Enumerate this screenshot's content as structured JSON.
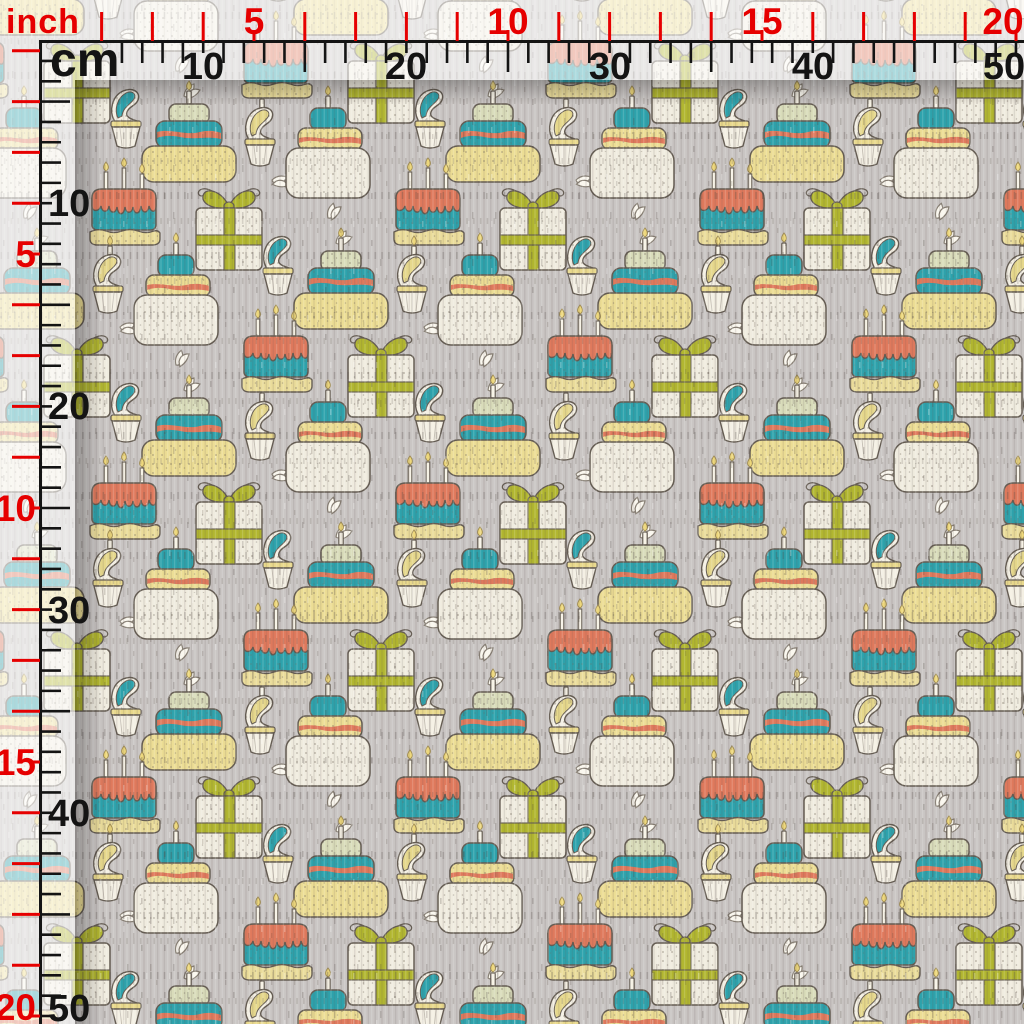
{
  "image": {
    "kind_label": "fabric-swatch-preview-with-rulers",
    "wash_overlay": "rgba(255,255,255,0.60)"
  },
  "rulers": {
    "inch": {
      "unit_label": "inch",
      "color": "#e60000",
      "marks": [
        5,
        10,
        15,
        20
      ]
    },
    "cm": {
      "unit_label": "cm",
      "color": "#141414",
      "marks": [
        10,
        20,
        30,
        40,
        50
      ]
    }
  },
  "fabric": {
    "description": "seamless birthday pattern: tier cakes with candles, drip cakes, swirl cupcakes, gift boxes and leaf sprigs on gray woven fabric",
    "motifs": [
      "three-tier-cake-with-candle",
      "white-base-tier-cake-with-candle",
      "drip-frosting-cake-with-three-candles",
      "swirl-cupcake-teal",
      "swirl-cupcake-yellow-with-candle",
      "gift-box-with-bow",
      "leaf-sprig"
    ],
    "colors": {
      "background": "#c9c5c3",
      "teal": "#2da2ac",
      "coral": "#df795c",
      "yellow": "#ecdd94",
      "sage": "#d9dcba",
      "cream": "#f0ecdf",
      "olive": "#b1b62f",
      "outline": "#645c52",
      "flame": "#eed87b"
    }
  }
}
